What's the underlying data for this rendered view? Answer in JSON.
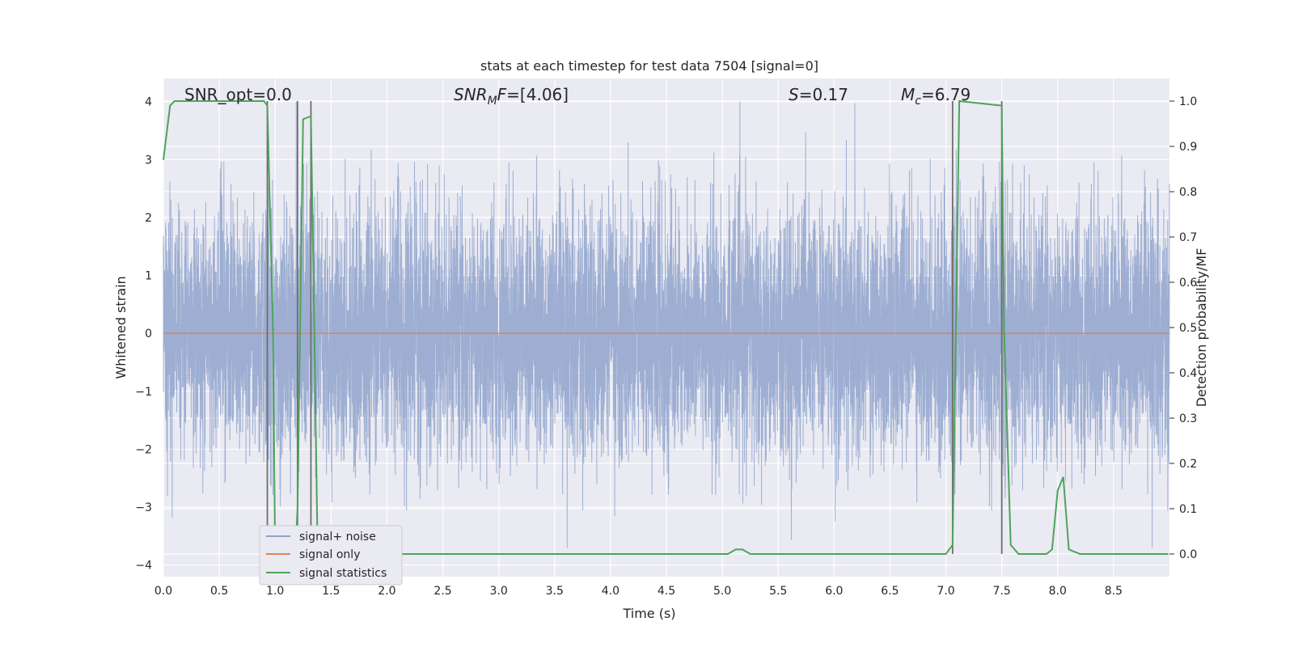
{
  "chart_data": {
    "type": "line",
    "title": "stats at each timestep for test data 7504 [signal=0]",
    "xlabel": "Time (s)",
    "ylabel_left": "Whitened strain",
    "ylabel_right": "Detection probability/MF",
    "xlim": [
      0.0,
      9.0
    ],
    "ylim_left": [
      -4.2,
      4.4
    ],
    "ylim_right": [
      -0.05,
      1.05
    ],
    "x_ticks": [
      "0.0",
      "0.5",
      "1.0",
      "1.5",
      "2.0",
      "2.5",
      "3.0",
      "3.5",
      "4.0",
      "4.5",
      "5.0",
      "5.5",
      "6.0",
      "6.5",
      "7.0",
      "7.5",
      "8.0",
      "8.5"
    ],
    "y_ticks_left": [
      "4",
      "3",
      "2",
      "1",
      "0",
      "−1",
      "−2",
      "−3",
      "−4"
    ],
    "y_ticks_right": [
      "1.0",
      "0.9",
      "0.8",
      "0.7",
      "0.6",
      "0.5",
      "0.4",
      "0.3",
      "0.2",
      "0.1",
      "0.0"
    ],
    "grid": true,
    "legend_placement": "lower-left",
    "annotations": {
      "snr_opt": "SNR_opt=0.0",
      "snr_mf": "SNR_MF=[4.06]",
      "s": "S=0.17",
      "mc": "M_c=6.79"
    },
    "series": [
      {
        "name": "signal+ noise",
        "axis": "left",
        "color": "#8fa3cc",
        "noise_std": 1.0,
        "envelope_peak": [
          4.0,
          -3.7
        ]
      },
      {
        "name": "signal only",
        "axis": "left",
        "color": "#dd8452",
        "x": [
          0.0,
          9.0
        ],
        "y": [
          0.0,
          0.0
        ]
      },
      {
        "name": "signal statistics",
        "axis": "right",
        "color": "#4ea35a",
        "x": [
          0.0,
          0.06,
          0.1,
          0.9,
          0.93,
          0.98,
          1.0,
          1.18,
          1.2,
          1.25,
          1.3,
          1.32,
          1.35,
          1.38,
          1.42,
          2.6,
          2.7,
          5.05,
          5.12,
          5.18,
          5.25,
          7.0,
          7.06,
          7.12,
          7.5,
          7.52,
          7.58,
          7.65,
          7.9,
          7.95,
          8.0,
          8.05,
          8.1,
          8.2,
          8.99
        ],
        "y": [
          0.87,
          0.99,
          1.0,
          1.0,
          0.99,
          0.5,
          0.0,
          0.0,
          0.1,
          0.96,
          0.965,
          0.965,
          0.5,
          0.0,
          0.0,
          0.0,
          0.0,
          0.0,
          0.01,
          0.01,
          0.0,
          0.0,
          0.02,
          1.0,
          0.99,
          0.5,
          0.02,
          0.0,
          0.0,
          0.01,
          0.14,
          0.17,
          0.01,
          0.0,
          0.0
        ]
      }
    ],
    "vertical_markers": [
      {
        "x": 0.93,
        "y_range": [
          0.0,
          1.0
        ]
      },
      {
        "x": 1.2,
        "y_range": [
          0.0,
          1.0
        ]
      },
      {
        "x": 1.32,
        "y_range": [
          0.0,
          1.0
        ]
      },
      {
        "x": 7.06,
        "y_range": [
          0.0,
          1.0
        ]
      },
      {
        "x": 7.5,
        "y_range": [
          0.0,
          1.0
        ]
      }
    ]
  },
  "colors": {
    "plot_bg": "#eaeaf2",
    "grid": "#ffffff",
    "marker": "#6e6e6e"
  }
}
